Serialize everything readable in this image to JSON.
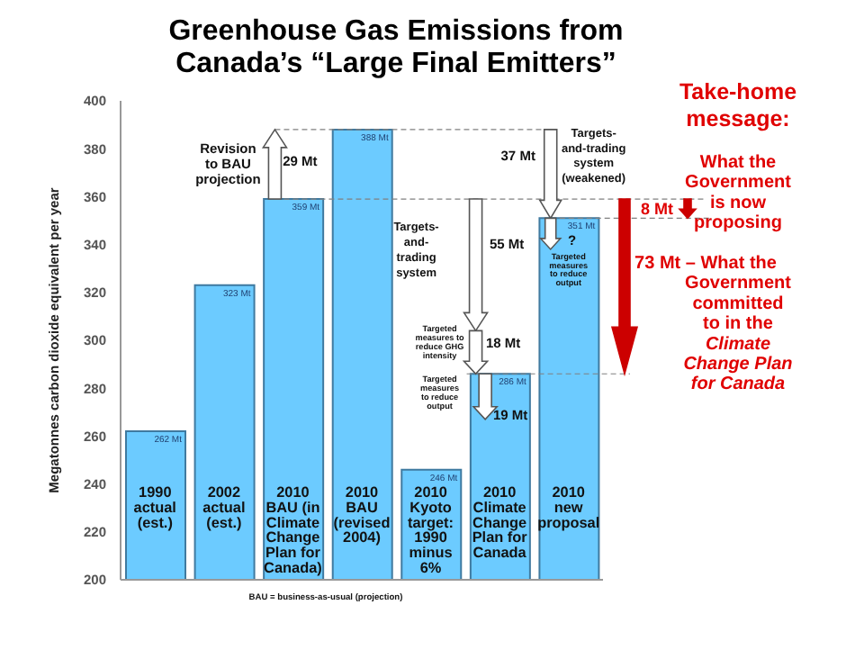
{
  "chart_data": {
    "type": "bar",
    "title": "Greenhouse Gas Emissions from\nCanada’s “Large Final Emitters”",
    "ylabel": "Megatonnes carbon dioxide equivalent per year",
    "categories": [
      "1990\nactual\n(est.)",
      "2002\nactual\n(est.)",
      "2010\nBAU (in\nClimate\nChange\nPlan for\nCanada)",
      "2010\nBAU\n(revised\n2004)",
      "2010\nKyoto\ntarget:\n1990\nminus\n6%",
      "2010\nClimate\nChange\nPlan for\nCanada",
      "2010\nnew\nproposal"
    ],
    "values": [
      262,
      323,
      359,
      388,
      246,
      286,
      351
    ],
    "value_labels": [
      "262 Mt",
      "323 Mt",
      "359 Mt",
      "388 Mt",
      "246 Mt",
      "286 Mt",
      "351 Mt"
    ],
    "color": "#6ccbff",
    "ylim": [
      200,
      400
    ],
    "yticks": [
      200,
      220,
      240,
      260,
      280,
      300,
      320,
      340,
      360,
      380,
      400
    ],
    "grid": false,
    "legend": false,
    "ref_lines": [
      {
        "axis": "y",
        "value": 388,
        "color": "#808080",
        "line_style": "dashed"
      },
      {
        "axis": "y",
        "value": 359,
        "color": "#808080",
        "line_style": "dashed"
      },
      {
        "axis": "y",
        "value": 351,
        "color": "#808080",
        "line_style": "dashed"
      },
      {
        "axis": "y",
        "value": 286,
        "color": "#808080",
        "line_style": "dashed"
      }
    ],
    "annotations": [
      "Revision\nto BAU\nprojection",
      "29 Mt",
      "37 Mt",
      "Targets-\nand-trading\nsystem\n(weakened)",
      "Targets-\nand-\ntrading\nsystem",
      "55 Mt",
      "Targeted\nmeasures to\nreduce GHG\nintensity",
      "18 Mt",
      "Targeted\nmeasures\nto reduce\noutput",
      "19 Mt",
      "?",
      "Targeted\nmeasures\nto reduce\noutput",
      "8 Mt",
      "73 Mt – What the\nGovernment\ncommitted\nto in the\nClimate\nChange Plan\nfor Canada",
      "Take-home\nmessage:",
      "What the\nGovernment\nis now\nproposing",
      "BAU = business-as-usual (projection)"
    ]
  }
}
